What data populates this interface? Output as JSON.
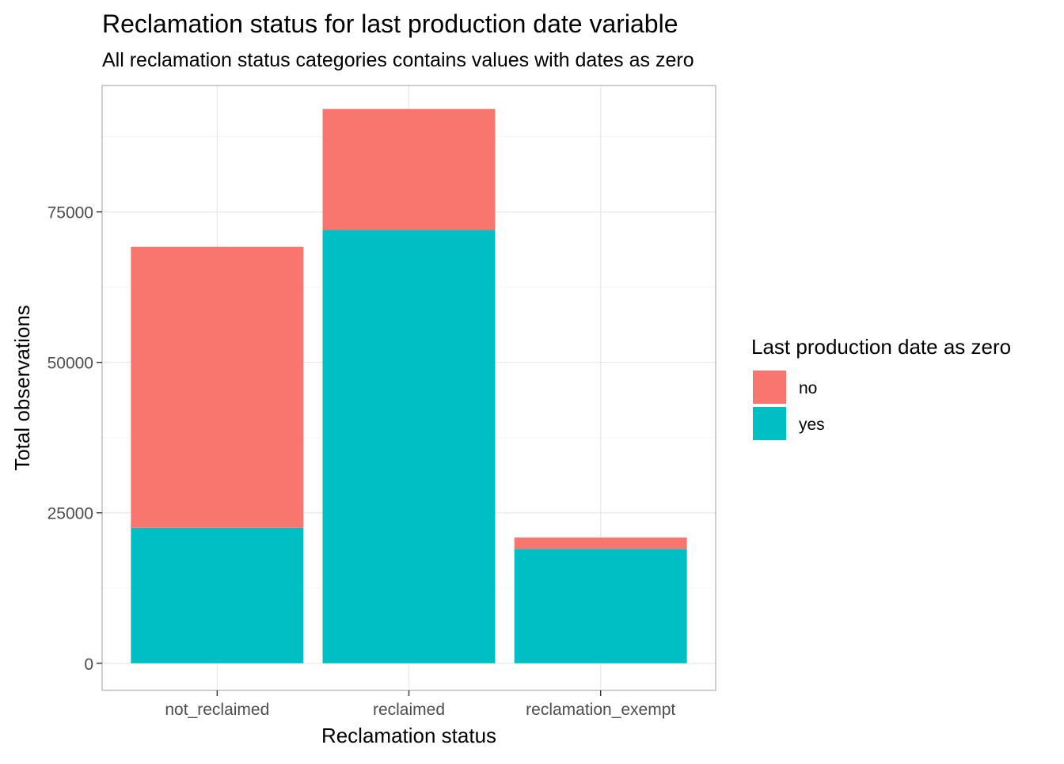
{
  "chart_data": {
    "type": "bar",
    "stacked": true,
    "title": "Reclamation status for last production date variable",
    "subtitle": "All reclamation status categories contains values with dates as zero",
    "xlabel": "Reclamation status",
    "ylabel": "Total observations",
    "categories": [
      "not_reclaimed",
      "reclaimed",
      "reclamation_exempt"
    ],
    "series": [
      {
        "name": "yes",
        "color": "#00BFC4",
        "values": [
          22500,
          72000,
          19000
        ]
      },
      {
        "name": "no",
        "color": "#F8766D",
        "values": [
          46700,
          20100,
          1900
        ]
      }
    ],
    "ylim": [
      -4500,
      96000
    ],
    "yticks": [
      0,
      25000,
      50000,
      75000
    ],
    "ytick_labels": [
      "0",
      "25000",
      "50000",
      "75000"
    ],
    "y_minor_ticks": [
      12500,
      37500,
      62500,
      87500
    ],
    "grid": true,
    "legend": {
      "title": "Last production date as zero",
      "position": "right",
      "entries": [
        {
          "label": "no",
          "color": "#F8766D"
        },
        {
          "label": "yes",
          "color": "#00BFC4"
        }
      ]
    },
    "colors": {
      "grid_major": "#EBEBEB",
      "grid_minor": "#F5F5F5",
      "panel_border": "#B3B3B3",
      "tick_text": "#4D4D4D"
    }
  }
}
